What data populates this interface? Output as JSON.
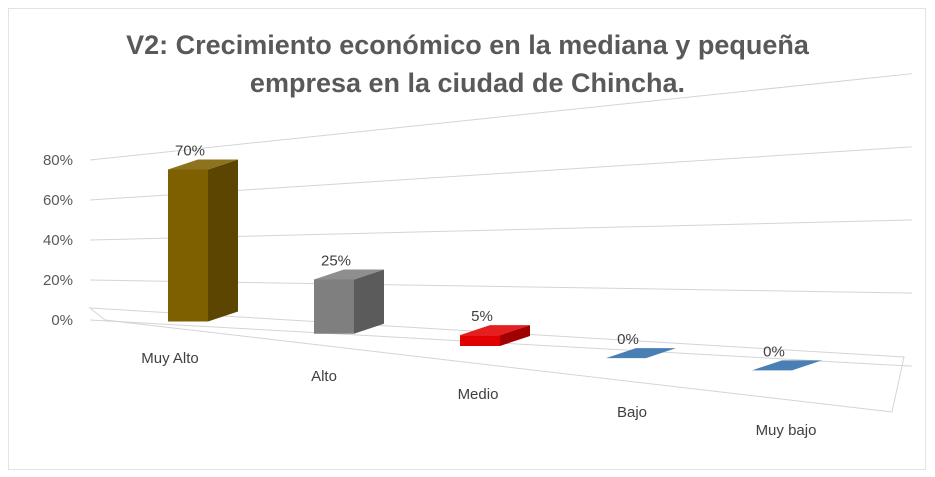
{
  "chart_data": {
    "type": "bar",
    "title_lines": [
      "V2: Crecimiento económico en la mediana y pequeña",
      "empresa en la ciudad de Chincha."
    ],
    "categories": [
      "Muy Alto",
      "Alto",
      "Medio",
      "Bajo",
      "Muy bajo"
    ],
    "values": [
      70,
      25,
      5,
      0,
      0
    ],
    "data_labels": [
      "70%",
      "25%",
      "5%",
      "0%",
      "0%"
    ],
    "colors": [
      "#7f6000",
      "#7f7f7f",
      "#e00000",
      "#4a7fb5",
      "#4a7fb5"
    ],
    "y_ticks": [
      0,
      20,
      40,
      60,
      80
    ],
    "y_tick_labels": [
      "0%",
      "20%",
      "40%",
      "60%",
      "80%"
    ],
    "ylim": [
      0,
      80
    ],
    "grid": true,
    "legend": "none",
    "style": "3d-column"
  }
}
